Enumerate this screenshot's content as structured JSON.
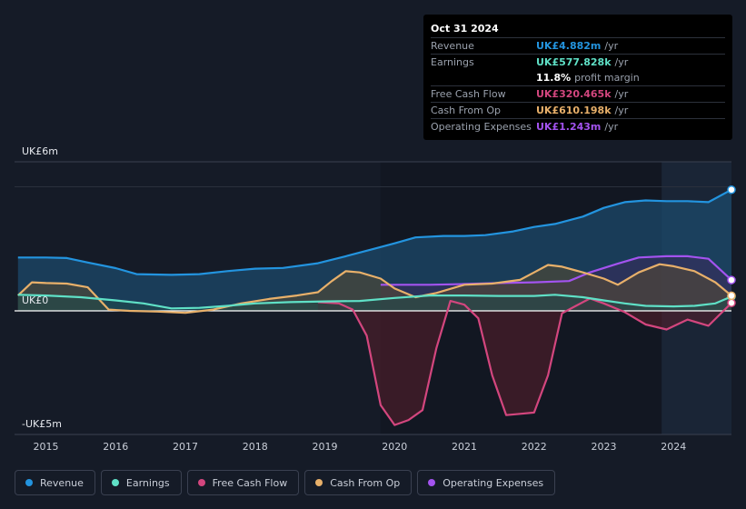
{
  "chart_data": {
    "type": "area",
    "currency_prefix": "UK£",
    "y_ticks": [
      {
        "value": 6,
        "label": "UK£6m"
      },
      {
        "value": 0,
        "label": "UK£0"
      },
      {
        "value": -5,
        "label": "-UK£5m"
      }
    ],
    "ylim": [
      -5,
      6
    ],
    "xlim": [
      2014.55,
      2024.83
    ],
    "x_ticks": [
      "2015",
      "2016",
      "2017",
      "2018",
      "2019",
      "2020",
      "2021",
      "2022",
      "2023",
      "2024"
    ],
    "forecast_start": 2023.83,
    "series": [
      {
        "name": "Revenue",
        "color": "#2394df",
        "fill": "#1c4a6b",
        "x": [
          2014.6,
          2014.8,
          2015.0,
          2015.3,
          2015.6,
          2016.0,
          2016.3,
          2016.8,
          2017.2,
          2017.6,
          2018.0,
          2018.4,
          2018.9,
          2019.3,
          2019.7,
          2020.0,
          2020.3,
          2020.7,
          2021.0,
          2021.3,
          2021.7,
          2022.0,
          2022.3,
          2022.7,
          2023.0,
          2023.3,
          2023.6,
          2023.9,
          2024.2,
          2024.5,
          2024.83
        ],
        "values": [
          2.15,
          2.15,
          2.15,
          2.13,
          1.95,
          1.72,
          1.48,
          1.45,
          1.48,
          1.6,
          1.7,
          1.73,
          1.92,
          2.2,
          2.5,
          2.72,
          2.96,
          3.02,
          3.02,
          3.05,
          3.2,
          3.38,
          3.5,
          3.8,
          4.15,
          4.38,
          4.45,
          4.42,
          4.42,
          4.38,
          4.882
        ]
      },
      {
        "name": "Earnings",
        "color": "#5fe0c6",
        "fill": "#1f4a4a",
        "x": [
          2014.6,
          2015.0,
          2015.5,
          2016.0,
          2016.4,
          2016.8,
          2017.2,
          2017.6,
          2018.0,
          2018.5,
          2019.0,
          2019.5,
          2020.0,
          2020.5,
          2021.0,
          2021.5,
          2022.0,
          2022.3,
          2022.7,
          2023.0,
          2023.3,
          2023.6,
          2024.0,
          2024.3,
          2024.6,
          2024.83
        ],
        "values": [
          0.65,
          0.62,
          0.55,
          0.42,
          0.3,
          0.1,
          0.12,
          0.2,
          0.3,
          0.35,
          0.38,
          0.4,
          0.52,
          0.62,
          0.62,
          0.6,
          0.6,
          0.65,
          0.55,
          0.42,
          0.3,
          0.2,
          0.18,
          0.2,
          0.3,
          0.577828
        ]
      },
      {
        "name": "Free Cash Flow",
        "color": "#d3467e",
        "fill": "#5a1f2c",
        "x": [
          2018.9,
          2019.2,
          2019.4,
          2019.6,
          2019.8,
          2020.0,
          2020.2,
          2020.4,
          2020.6,
          2020.8,
          2021.0,
          2021.2,
          2021.4,
          2021.6,
          2021.8,
          2022.0,
          2022.2,
          2022.4,
          2022.6,
          2022.8,
          2023.0,
          2023.3,
          2023.6,
          2023.9,
          2024.2,
          2024.5,
          2024.83
        ],
        "values": [
          0.35,
          0.3,
          0.05,
          -1.0,
          -3.8,
          -4.6,
          -4.4,
          -4.0,
          -1.5,
          0.4,
          0.25,
          -0.3,
          -2.6,
          -4.2,
          -4.15,
          -4.1,
          -2.6,
          -0.1,
          0.2,
          0.5,
          0.3,
          -0.05,
          -0.55,
          -0.75,
          -0.35,
          -0.6,
          0.320465
        ]
      },
      {
        "name": "Cash From Op",
        "color": "#e8b06a",
        "fill": "#5a4a30",
        "x": [
          2014.6,
          2014.8,
          2015.0,
          2015.3,
          2015.6,
          2015.9,
          2016.2,
          2016.6,
          2017.0,
          2017.4,
          2017.8,
          2018.2,
          2018.6,
          2018.9,
          2019.1,
          2019.3,
          2019.5,
          2019.8,
          2020.0,
          2020.3,
          2020.6,
          2021.0,
          2021.4,
          2021.8,
          2022.0,
          2022.2,
          2022.4,
          2022.7,
          2023.0,
          2023.2,
          2023.5,
          2023.8,
          2024.0,
          2024.3,
          2024.6,
          2024.83
        ],
        "values": [
          0.62,
          1.15,
          1.12,
          1.1,
          0.95,
          0.05,
          0.0,
          -0.03,
          -0.08,
          0.05,
          0.3,
          0.48,
          0.62,
          0.75,
          1.2,
          1.6,
          1.55,
          1.3,
          0.9,
          0.55,
          0.72,
          1.05,
          1.1,
          1.25,
          1.55,
          1.85,
          1.78,
          1.55,
          1.3,
          1.05,
          1.55,
          1.88,
          1.8,
          1.6,
          1.15,
          0.610198
        ]
      },
      {
        "name": "Operating Expenses",
        "color": "#a353ef",
        "fill": "#3a2a5c",
        "x": [
          2019.8,
          2020.0,
          2020.5,
          2021.0,
          2021.5,
          2022.0,
          2022.5,
          2022.8,
          2023.2,
          2023.5,
          2023.9,
          2024.2,
          2024.5,
          2024.83
        ],
        "values": [
          1.05,
          1.05,
          1.05,
          1.08,
          1.12,
          1.15,
          1.2,
          1.55,
          1.9,
          2.15,
          2.2,
          2.2,
          2.1,
          1.243
        ]
      }
    ]
  },
  "tooltip": {
    "date": "Oct 31 2024",
    "rows": [
      {
        "label": "Revenue",
        "value": "UK£4.882m",
        "unit": "/yr",
        "color": "#2394df"
      },
      {
        "label": "Earnings",
        "value": "UK£577.828k",
        "unit": "/yr",
        "color": "#5fe0c6"
      },
      {
        "label": "",
        "value": "11.8%",
        "unit": "profit margin",
        "color": "#ffffff"
      },
      {
        "label": "Free Cash Flow",
        "value": "UK£320.465k",
        "unit": "/yr",
        "color": "#d3467e"
      },
      {
        "label": "Cash From Op",
        "value": "UK£610.198k",
        "unit": "/yr",
        "color": "#e8b06a"
      },
      {
        "label": "Operating Expenses",
        "value": "UK£1.243m",
        "unit": "/yr",
        "color": "#a353ef"
      }
    ]
  },
  "legend": [
    {
      "label": "Revenue",
      "color": "#2394df"
    },
    {
      "label": "Earnings",
      "color": "#5fe0c6"
    },
    {
      "label": "Free Cash Flow",
      "color": "#d3467e"
    },
    {
      "label": "Cash From Op",
      "color": "#e8b06a"
    },
    {
      "label": "Operating Expenses",
      "color": "#a353ef"
    }
  ]
}
